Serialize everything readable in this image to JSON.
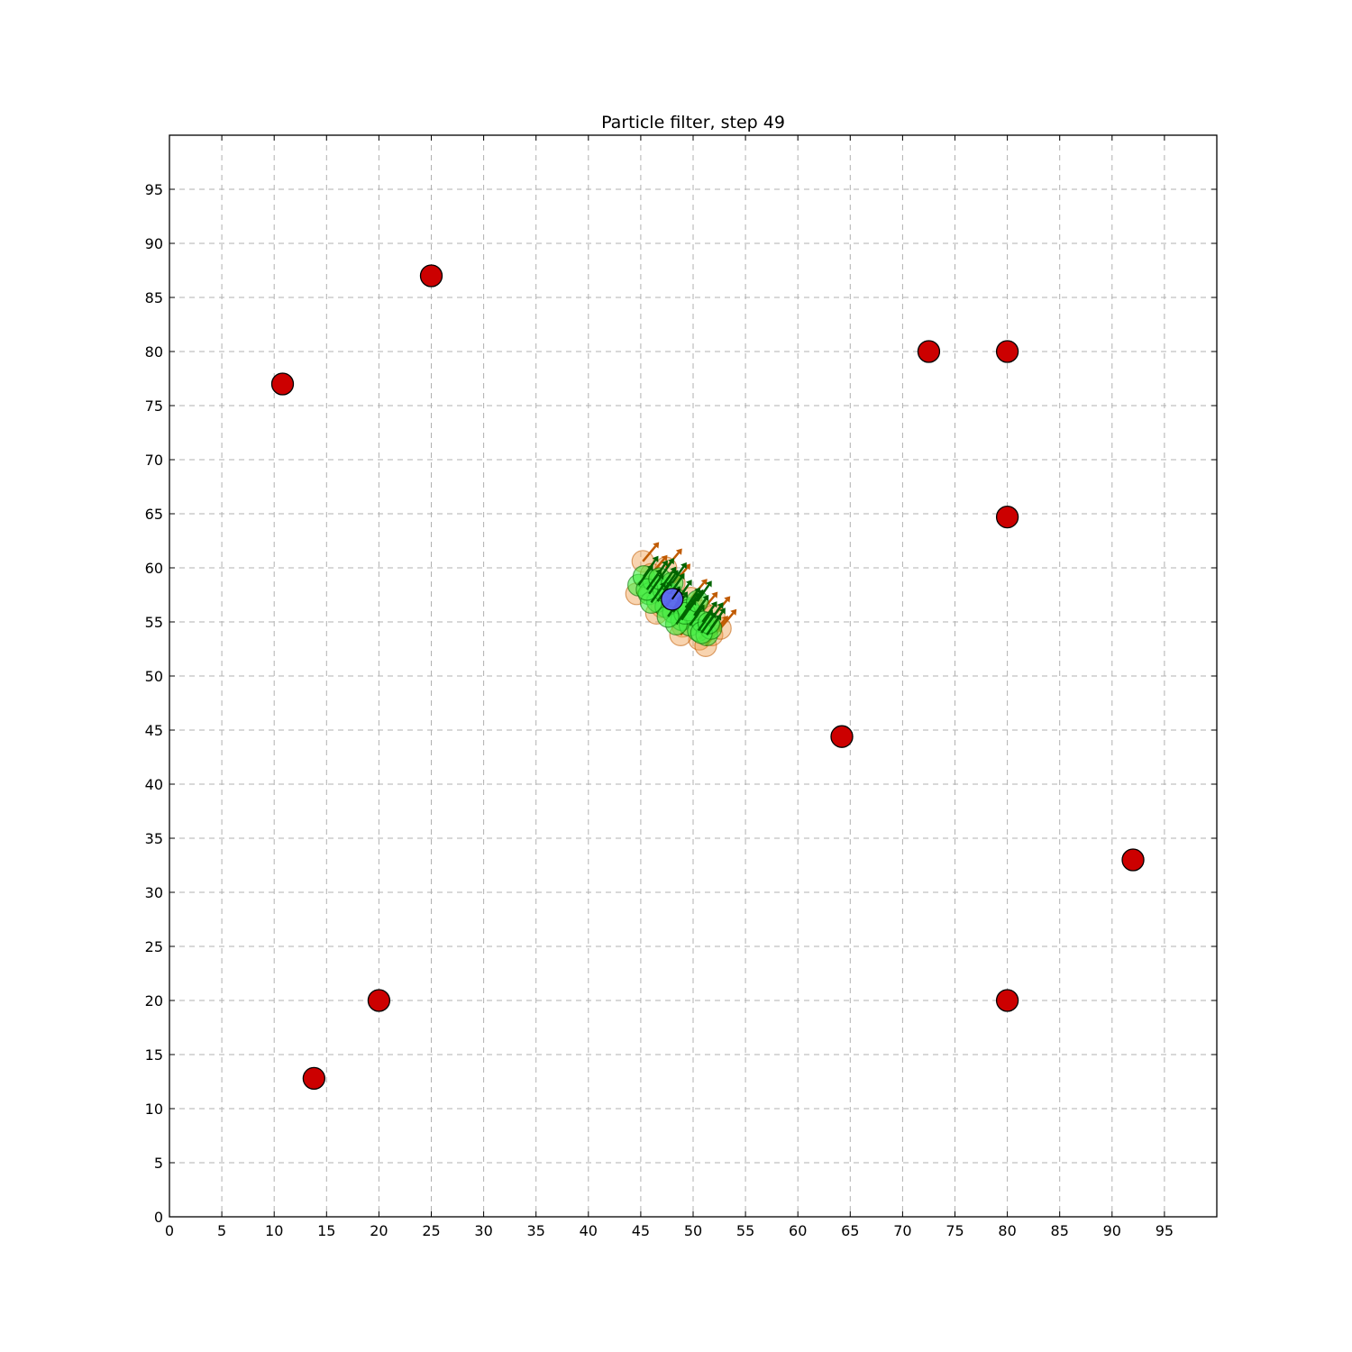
{
  "chart_data": {
    "type": "scatter",
    "title": "Particle filter, step 49",
    "xlabel": "",
    "ylabel": "",
    "xlim": [
      0,
      100
    ],
    "ylim": [
      0,
      100
    ],
    "xticks": [
      "0",
      "5",
      "10",
      "15",
      "20",
      "25",
      "30",
      "35",
      "40",
      "45",
      "50",
      "55",
      "60",
      "65",
      "70",
      "75",
      "80",
      "85",
      "90",
      "95"
    ],
    "yticks": [
      "0",
      "5",
      "10",
      "15",
      "20",
      "25",
      "30",
      "35",
      "40",
      "45",
      "50",
      "55",
      "60",
      "65",
      "70",
      "75",
      "80",
      "85",
      "90",
      "95"
    ],
    "grid": true,
    "legend": "none",
    "landmarks": {
      "name": "",
      "color": "#cc0000",
      "x": [
        10.8,
        25.0,
        72.5,
        80.0,
        80.0,
        64.2,
        92.0,
        80.0,
        20.0,
        13.8
      ],
      "y": [
        77.0,
        87.0,
        80.0,
        80.0,
        64.7,
        44.4,
        33.0,
        20.0,
        20.0,
        12.8
      ]
    },
    "prior_particles": {
      "name": "",
      "color": "#f0a050",
      "arrow_color": "#c05a00",
      "x": [
        44.6,
        45.2,
        46.0,
        47.0,
        48.2,
        49.0,
        49.8,
        50.6,
        51.2,
        51.8,
        52.6,
        50.8,
        46.5,
        48.8,
        47.4,
        52.0
      ],
      "y": [
        57.6,
        60.6,
        59.4,
        56.4,
        58.6,
        54.6,
        57.2,
        53.4,
        52.8,
        53.8,
        54.4,
        56.0,
        55.8,
        53.8,
        60.0,
        55.6
      ]
    },
    "particles": {
      "name": "",
      "color": "#44ee44",
      "arrow_color": "#006400",
      "x": [
        44.8,
        45.3,
        45.8,
        46.2,
        46.6,
        47.0,
        47.4,
        47.8,
        48.1,
        48.5,
        48.9,
        49.3,
        49.7,
        50.1,
        50.5,
        50.9,
        51.3,
        51.7,
        46.0,
        47.2,
        48.4,
        49.6,
        50.8,
        45.6,
        46.8,
        48.0,
        49.2,
        50.4,
        51.5,
        47.6
      ],
      "y": [
        58.4,
        59.2,
        57.6,
        58.8,
        56.9,
        58.2,
        56.4,
        57.6,
        55.9,
        57.0,
        55.2,
        56.3,
        54.7,
        55.6,
        54.2,
        55.0,
        53.8,
        54.4,
        56.8,
        57.9,
        54.8,
        56.1,
        54.0,
        58.0,
        59.0,
        58.6,
        55.8,
        56.9,
        54.9,
        55.5
      ]
    },
    "robot": {
      "name": "",
      "color": "#6060ff",
      "x": 48.0,
      "y": 57.1,
      "heading_deg": 55
    }
  }
}
